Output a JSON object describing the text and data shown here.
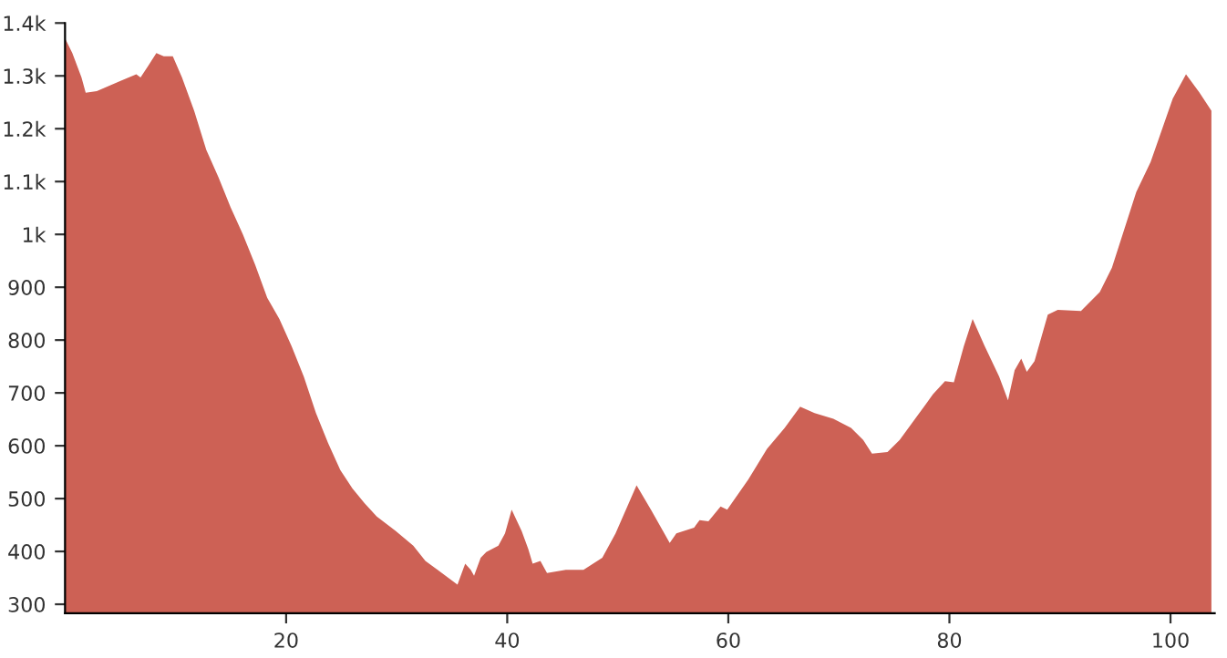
{
  "chart_data": {
    "type": "area",
    "x": [
      0,
      0.66,
      1.49,
      1.87,
      2.87,
      5.07,
      6.45,
      6.83,
      7.55,
      8.26,
      8.93,
      9.75,
      10.58,
      11.68,
      12.78,
      13.88,
      14.98,
      16.09,
      17.19,
      18.29,
      19.39,
      20.5,
      21.6,
      22.7,
      23.8,
      24.9,
      26.0,
      27.1,
      28.2,
      29.9,
      31.5,
      32.6,
      33.7,
      35.5,
      36.2,
      36.7,
      37.0,
      37.6,
      38.1,
      39.2,
      39.8,
      40.4,
      41.3,
      41.9,
      42.3,
      43.0,
      43.6,
      45.3,
      46.9,
      48.6,
      49.8,
      51.7,
      53.0,
      54.7,
      55.3,
      56.9,
      57.4,
      58.2,
      59.3,
      59.9,
      61.8,
      63.5,
      65.1,
      66.5,
      67.8,
      69.5,
      71.1,
      72.2,
      73.0,
      74.4,
      75.5,
      76.9,
      78.5,
      79.6,
      80.4,
      81.3,
      82.1,
      83.2,
      84.5,
      85.3,
      85.9,
      86.5,
      87.0,
      87.7,
      88.9,
      89.8,
      91.9,
      93.6,
      94.7,
      96.9,
      98.2,
      100.2,
      101.4,
      102.6,
      103.7
    ],
    "series": [
      {
        "color": "#cd6155",
        "values": [
          1371,
          1343,
          1297,
          1268,
          1271,
          1291,
          1303,
          1297,
          1320,
          1343,
          1337,
          1337,
          1297,
          1234,
          1160,
          1108,
          1051,
          1000,
          943,
          880,
          840,
          788,
          731,
          662,
          605,
          554,
          519,
          491,
          466,
          439,
          411,
          382,
          365,
          337,
          377,
          365,
          354,
          388,
          399,
          411,
          434,
          479,
          439,
          405,
          377,
          382,
          359,
          365,
          365,
          388,
          434,
          525,
          479,
          416,
          434,
          445,
          459,
          457,
          485,
          479,
          536,
          594,
          634,
          674,
          662,
          651,
          634,
          611,
          585,
          588,
          611,
          651,
          697,
          722,
          720,
          788,
          840,
          788,
          731,
          686,
          743,
          765,
          740,
          760,
          848,
          857,
          855,
          891,
          937,
          1080,
          1137,
          1257,
          1303,
          1269,
          1234
        ]
      }
    ],
    "xlim": [
      0,
      104
    ],
    "ylim": [
      283,
      1400
    ],
    "xticks": [
      20,
      40,
      60,
      80,
      100
    ],
    "yticks": [
      300,
      400,
      500,
      600,
      700,
      800,
      900,
      {
        "value": 1000,
        "label": "1k"
      },
      {
        "value": 1100,
        "label": "1.1k"
      },
      {
        "value": 1200,
        "label": "1.2k"
      },
      {
        "value": 1300,
        "label": "1.3k"
      },
      {
        "value": 1400,
        "label": "1.4k"
      }
    ],
    "grid": false,
    "legend": false
  }
}
